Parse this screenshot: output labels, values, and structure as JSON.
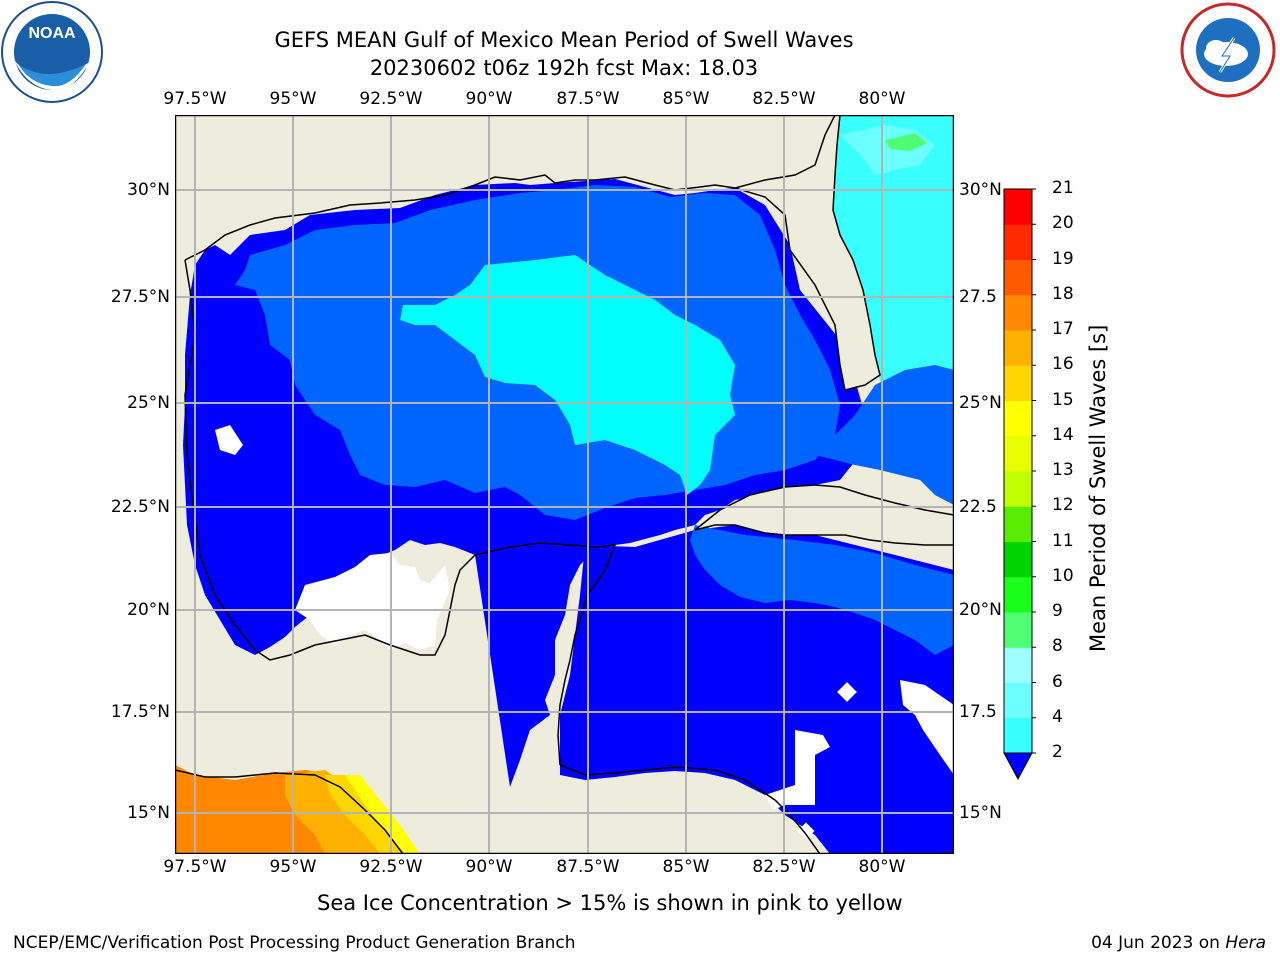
{
  "title": {
    "line1": "GEFS MEAN Gulf of Mexico Mean Period of Swell Waves",
    "line2": "20230602 t06z 192h fcst   Max: 18.03"
  },
  "logos": {
    "left": "NOAA",
    "right": "NATIONAL WEATHER SERVICE"
  },
  "map": {
    "lon_ticks": [
      "97.5°W",
      "95°W",
      "92.5°W",
      "90°W",
      "87.5°W",
      "85°W",
      "82.5°W",
      "80°W"
    ],
    "lat_ticks_left": [
      "30°N",
      "27.5°N",
      "25°N",
      "22.5°N",
      "20°N",
      "17.5°N",
      "15°N"
    ],
    "lat_ticks_right": [
      "30°N",
      "27.5",
      "25°N",
      "22.5",
      "20°N",
      "17.5",
      "15°N"
    ],
    "extent": {
      "lon": [
        -98,
        -79
      ],
      "lat": [
        14,
        31.7
      ]
    },
    "colors": {
      "land": "#eeecdc",
      "no_data": "#ffffff",
      "grid": "#b4b4b4",
      "coast": "#000000"
    }
  },
  "colorbar": {
    "label": "Mean Period of Swell Waves [s]",
    "ticks": [
      "2",
      "4",
      "6",
      "8",
      "9",
      "10",
      "11",
      "12",
      "13",
      "14",
      "15",
      "16",
      "17",
      "18",
      "19",
      "20",
      "21"
    ],
    "colors": [
      "#0064ff",
      "#00ffff",
      "#39ffff",
      "#6cffff",
      "#9dfffd",
      "#4fff73",
      "#19ff19",
      "#00d400",
      "#59eb00",
      "#c0ff00",
      "#e7ff00",
      "#ffff00",
      "#ffd700",
      "#ffb000",
      "#ff8800",
      "#ff5a00",
      "#ff2a00",
      "#ff0000"
    ],
    "under_color": "#0000ff"
  },
  "note": "Sea Ice Concentration > 15% is shown in pink to yellow",
  "footer": {
    "left": "NCEP/EMC/Verification Post Processing Product Generation Branch",
    "date": "04 Jun 2023 on ",
    "machine": "Hera"
  }
}
